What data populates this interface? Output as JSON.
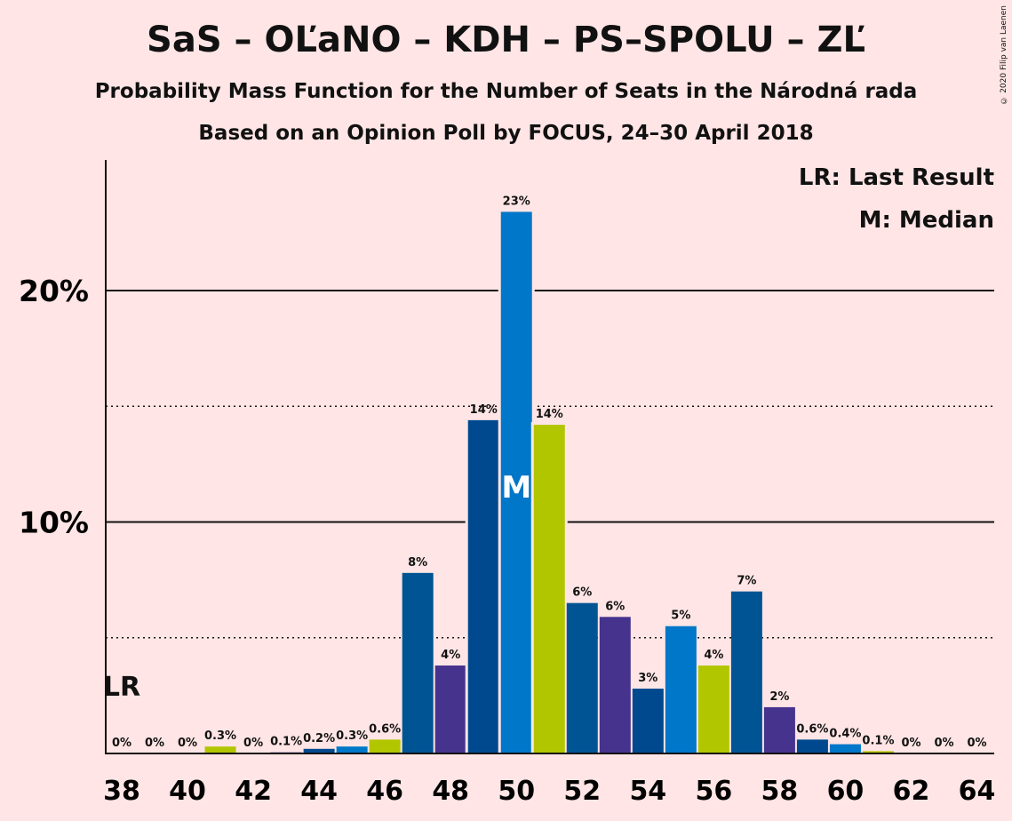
{
  "header": {
    "title": "SaS – OĽaNO – KDH – PS–SPOLU – ZĽ",
    "subtitle": "Probability Mass Function for the Number of Seats in the Národná rada",
    "subtitle2": "Based on an Opinion Poll by FOCUS, 24–30 April 2018",
    "copyright": "© 2020 Filip van Laenen"
  },
  "legend": {
    "lr": "LR: Last Result",
    "m": "M: Median"
  },
  "markers": {
    "last_result_label": "LR",
    "last_result_seats": 38,
    "median_label": "M",
    "median_seats": 50
  },
  "colors": {
    "background": "#FFE5E5",
    "palette": [
      "#00498F",
      "#0077C8",
      "#B2C600",
      "#005493",
      "#46338E"
    ]
  },
  "chart_data": {
    "type": "bar",
    "title": "SaS – OĽaNO – KDH – PS–SPOLU – ZĽ",
    "xlabel": "",
    "ylabel": "",
    "ylim": [
      0,
      25.5
    ],
    "yticks": [
      10,
      20
    ],
    "ytick_labels": [
      "10%",
      "20%"
    ],
    "dotted_lines": [
      5,
      15
    ],
    "x_tick_labels": [
      "38",
      "40",
      "42",
      "44",
      "46",
      "48",
      "50",
      "52",
      "54",
      "56",
      "58",
      "60",
      "62",
      "64"
    ],
    "x": [
      38,
      39,
      40,
      41,
      42,
      43,
      44,
      45,
      46,
      47,
      48,
      49,
      50,
      51,
      52,
      53,
      54,
      55,
      56,
      57,
      58,
      59,
      60,
      61,
      62,
      63,
      64
    ],
    "values": [
      0,
      0,
      0,
      0.3,
      0,
      0.05,
      0.2,
      0.3,
      0.6,
      7.8,
      3.8,
      14.4,
      23.4,
      14.2,
      6.5,
      5.9,
      2.8,
      5.5,
      3.8,
      7.0,
      2.0,
      0.6,
      0.4,
      0.1,
      0,
      0,
      0
    ],
    "labels": [
      "0%",
      "0%",
      "0%",
      "0.3%",
      "0%",
      "0.1%",
      "0.2%",
      "0.3%",
      "0.6%",
      "8%",
      "4%",
      "14%",
      "23%",
      "14%",
      "6%",
      "6%",
      "3%",
      "5%",
      "4%",
      "7%",
      "2%",
      "0.6%",
      "0.4%",
      "0.1%",
      "0%",
      "0%",
      "0%"
    ],
    "colors": [
      "#46338E",
      "#00498F",
      "#0077C8",
      "#B2C600",
      "#005493",
      "#46338E",
      "#00498F",
      "#0077C8",
      "#B2C600",
      "#005493",
      "#46338E",
      "#00498F",
      "#0077C8",
      "#B2C600",
      "#005493",
      "#46338E",
      "#00498F",
      "#0077C8",
      "#B2C600",
      "#005493",
      "#46338E",
      "#00498F",
      "#0077C8",
      "#B2C600",
      "#005493",
      "#46338E",
      "#00498F"
    ]
  }
}
